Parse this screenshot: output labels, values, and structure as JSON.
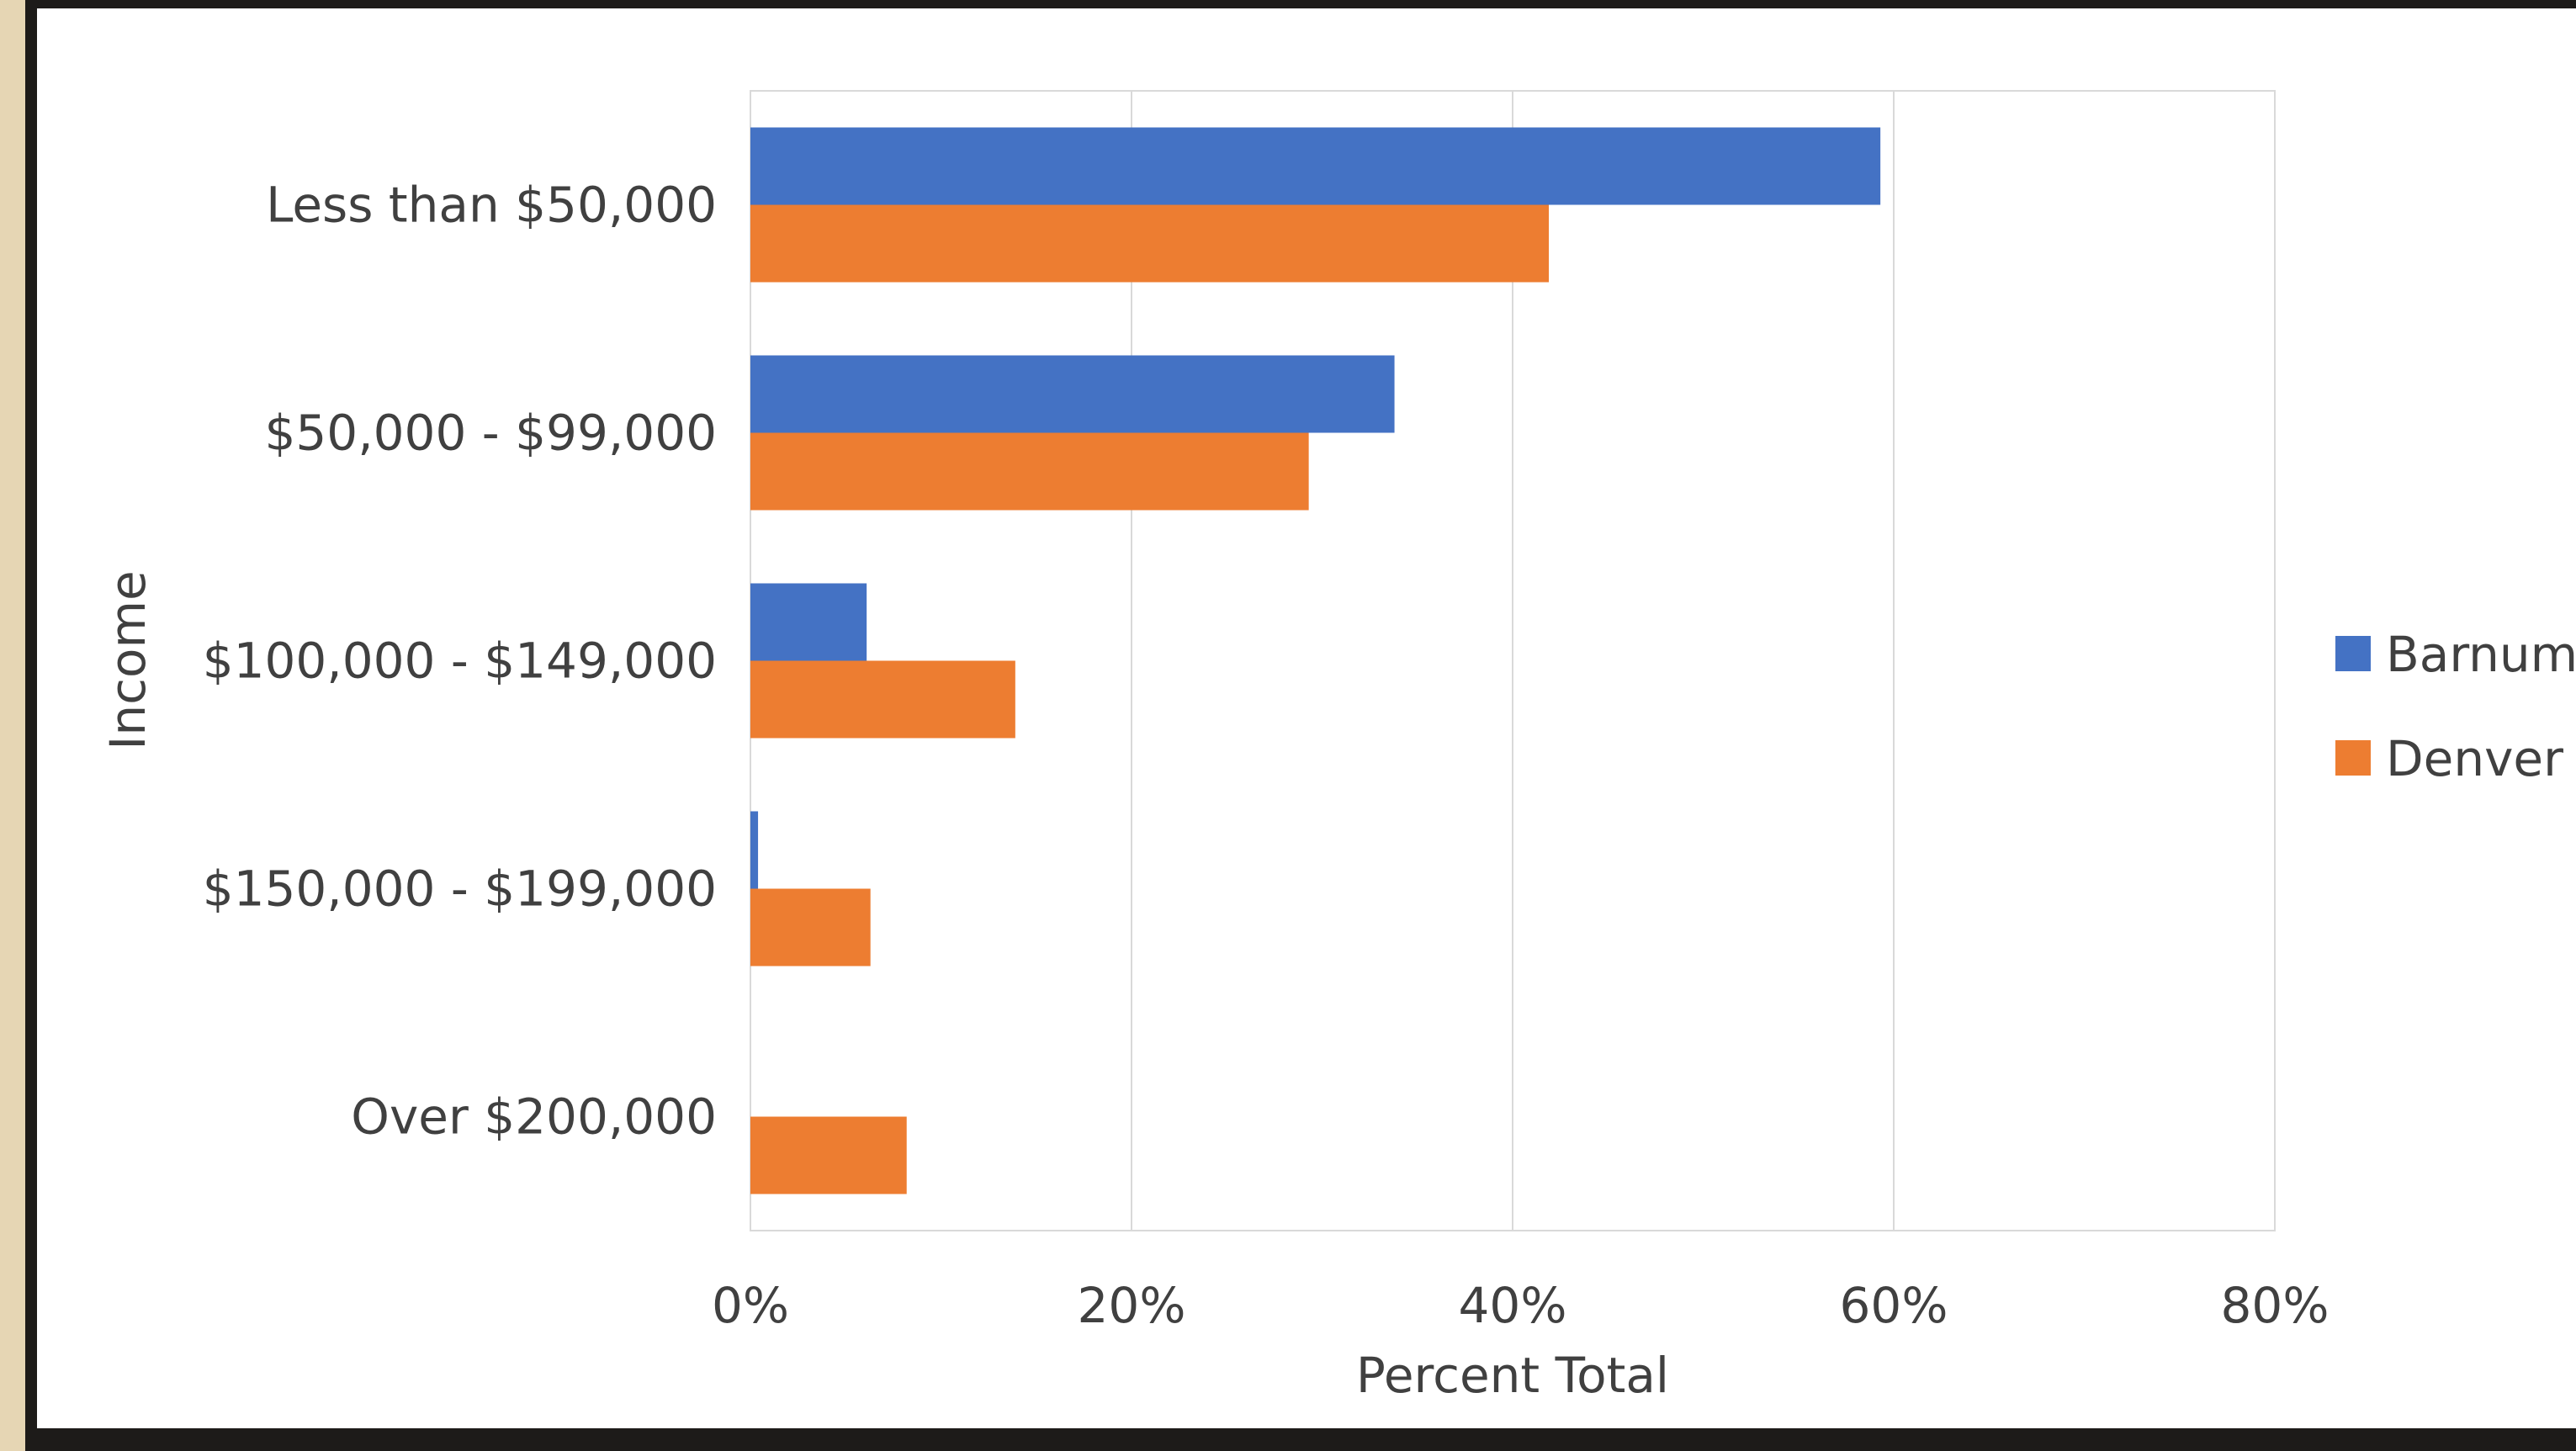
{
  "chart_data": {
    "type": "bar",
    "orientation": "horizontal",
    "categories": [
      "Less than $50,000",
      "$50,000 - $99,000",
      "$100,000 - $149,000",
      "$150,000 - $199,000",
      "Over $200,000"
    ],
    "series": [
      {
        "name": "Barnum",
        "color": "#4472c4",
        "values": [
          59.3,
          33.8,
          6.1,
          0.4,
          0.0
        ]
      },
      {
        "name": "Denver",
        "color": "#ed7d31",
        "values": [
          41.9,
          29.3,
          13.9,
          6.3,
          8.2
        ]
      }
    ],
    "title": "",
    "xlabel": "Percent Total",
    "ylabel": "Income",
    "xlim": [
      0,
      80
    ],
    "xticks": [
      0,
      20,
      40,
      60,
      80
    ],
    "xtick_labels": [
      "0%",
      "20%",
      "40%",
      "60%",
      "80%"
    ],
    "grid": true,
    "legend_position": "right"
  }
}
